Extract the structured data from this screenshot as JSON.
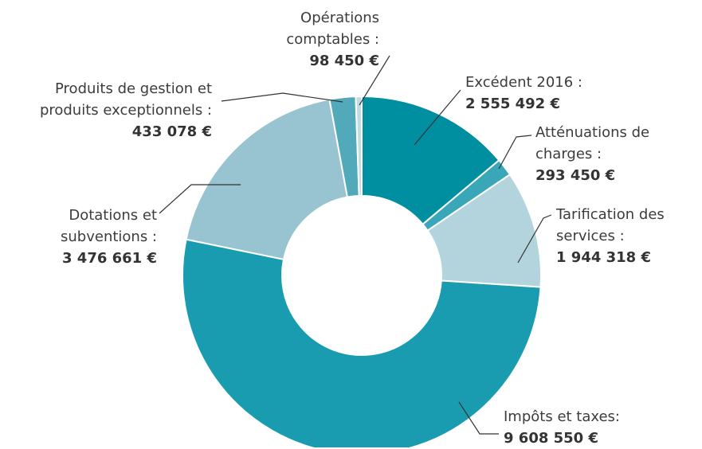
{
  "chart_data": {
    "type": "donut",
    "categories": [
      "Excédent 2016 :",
      "Atténuations de charges :",
      "Tarification des services :",
      "Impôts et taxes:",
      "Dotations et subventions :",
      "Produits de gestion et produits exceptionnels :",
      "Opérations comptables :"
    ],
    "values": [
      2555492,
      293450,
      1944318,
      9608550,
      3476661,
      433078,
      98450
    ],
    "value_labels": [
      "2 555 492 €",
      "293 450 €",
      "1 944 318 €",
      "9 608 550 €",
      "3 476 661 €",
      "433 078 €",
      "98 450 €"
    ],
    "colors": [
      "#008fa1",
      "#3aa7b8",
      "#b3d4dd",
      "#1a9cb0",
      "#97c4d0",
      "#52a9ba",
      "#c2dce3"
    ]
  }
}
